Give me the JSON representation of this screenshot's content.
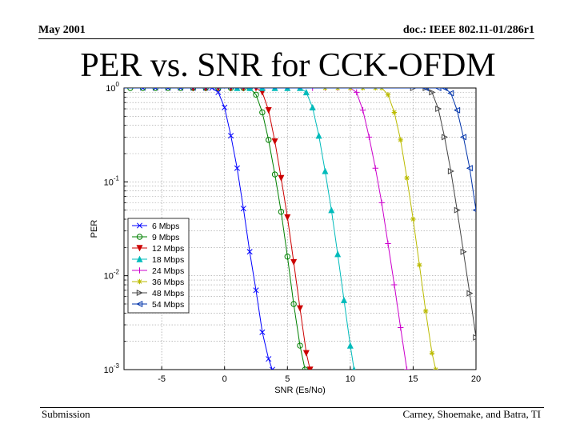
{
  "header": {
    "left": "May 2001",
    "right": "doc.: IEEE 802.11-01/286r1"
  },
  "slide_title": "PER vs. SNR for CCK-OFDM",
  "footer": {
    "left": "Submission",
    "right": "Carney, Shoemake, and Batra, TI"
  },
  "chart_data": {
    "type": "line",
    "xlabel": "SNR (Es/No)",
    "ylabel": "PER",
    "xlim": [
      -8,
      20
    ],
    "ylim": [
      0.001,
      1
    ],
    "yscale": "log",
    "grid": true,
    "legend_position": "left-middle",
    "x_ticks": [
      -5,
      0,
      5,
      10,
      15,
      20
    ],
    "x_tick_labels": [
      "-5",
      "0",
      "5",
      "10",
      "15",
      "20"
    ],
    "y_ticks": [
      1,
      0.1,
      0.01,
      0.001
    ],
    "y_tick_labels": [
      {
        "base": "10",
        "exp": "0"
      },
      {
        "base": "10",
        "exp": "-1"
      },
      {
        "base": "10",
        "exp": "-2"
      },
      {
        "base": "10",
        "exp": "-3"
      }
    ],
    "series": [
      {
        "name": "6 Mbps",
        "color": "#0000ff",
        "marker": "x",
        "points": [
          [
            -6.5,
            1
          ],
          [
            -5.5,
            1
          ],
          [
            -4.5,
            1
          ],
          [
            -3.5,
            1
          ],
          [
            -2.5,
            1
          ],
          [
            -1.5,
            1
          ],
          [
            -1,
            1
          ],
          [
            -0.5,
            0.9
          ],
          [
            0,
            0.62
          ],
          [
            0.5,
            0.31
          ],
          [
            1,
            0.14
          ],
          [
            1.5,
            0.052
          ],
          [
            2,
            0.018
          ],
          [
            2.5,
            0.007
          ],
          [
            3,
            0.0025
          ],
          [
            3.5,
            0.0013
          ],
          [
            3.8,
            0.001
          ]
        ]
      },
      {
        "name": "9 Mbps",
        "color": "#008000",
        "marker": "o",
        "points": [
          [
            -7.5,
            1
          ],
          [
            -6.5,
            1
          ],
          [
            -5.5,
            1
          ],
          [
            -4.5,
            1
          ],
          [
            -3.5,
            1
          ],
          [
            -2.5,
            1
          ],
          [
            -1.5,
            1
          ],
          [
            -0.5,
            1
          ],
          [
            0.5,
            1
          ],
          [
            1.5,
            1
          ],
          [
            2,
            1
          ],
          [
            2.5,
            0.85
          ],
          [
            3,
            0.55
          ],
          [
            3.5,
            0.28
          ],
          [
            4,
            0.12
          ],
          [
            4.5,
            0.048
          ],
          [
            5,
            0.016
          ],
          [
            5.5,
            0.005
          ],
          [
            6,
            0.0018
          ],
          [
            6.4,
            0.001
          ]
        ]
      },
      {
        "name": "12 Mbps",
        "color": "#cc0000",
        "marker": "v",
        "points": [
          [
            -2.5,
            1
          ],
          [
            -1.5,
            1
          ],
          [
            -0.5,
            1
          ],
          [
            0.5,
            1
          ],
          [
            1.5,
            1
          ],
          [
            2.5,
            1
          ],
          [
            3,
            0.9
          ],
          [
            3.5,
            0.58
          ],
          [
            4,
            0.27
          ],
          [
            4.5,
            0.11
          ],
          [
            5,
            0.042
          ],
          [
            5.5,
            0.014
          ],
          [
            6,
            0.0045
          ],
          [
            6.5,
            0.0015
          ],
          [
            6.8,
            0.001
          ]
        ]
      },
      {
        "name": "18 Mbps",
        "color": "#00bbbb",
        "marker": "^",
        "points": [
          [
            1,
            1
          ],
          [
            2,
            1
          ],
          [
            3,
            1
          ],
          [
            4,
            1
          ],
          [
            5,
            1
          ],
          [
            6,
            1
          ],
          [
            6.5,
            0.9
          ],
          [
            7,
            0.62
          ],
          [
            7.5,
            0.31
          ],
          [
            8,
            0.13
          ],
          [
            8.5,
            0.05
          ],
          [
            9,
            0.017
          ],
          [
            9.5,
            0.0055
          ],
          [
            10,
            0.0018
          ],
          [
            10.3,
            0.001
          ]
        ]
      },
      {
        "name": "24 Mbps",
        "color": "#cc00cc",
        "marker": "+",
        "points": [
          [
            7,
            1
          ],
          [
            8,
            1
          ],
          [
            9,
            1
          ],
          [
            10,
            1
          ],
          [
            10.5,
            0.9
          ],
          [
            11,
            0.58
          ],
          [
            11.5,
            0.3
          ],
          [
            12,
            0.14
          ],
          [
            12.5,
            0.06
          ],
          [
            13,
            0.022
          ],
          [
            13.5,
            0.008
          ],
          [
            14,
            0.0028
          ],
          [
            14.5,
            0.001
          ]
        ]
      },
      {
        "name": "36 Mbps",
        "color": "#bbbb00",
        "marker": "*",
        "points": [
          [
            8,
            1
          ],
          [
            9,
            1
          ],
          [
            10,
            1
          ],
          [
            11,
            1
          ],
          [
            12,
            1
          ],
          [
            12.5,
            1
          ],
          [
            13,
            0.85
          ],
          [
            13.5,
            0.55
          ],
          [
            14,
            0.28
          ],
          [
            14.5,
            0.11
          ],
          [
            15,
            0.04
          ],
          [
            15.5,
            0.013
          ],
          [
            16,
            0.0042
          ],
          [
            16.5,
            0.0015
          ],
          [
            16.8,
            0.001
          ]
        ]
      },
      {
        "name": "48 Mbps",
        "color": "#444444",
        "marker": ">",
        "points": [
          [
            15,
            1
          ],
          [
            16,
            1
          ],
          [
            16.5,
            0.9
          ],
          [
            17,
            0.6
          ],
          [
            17.5,
            0.3
          ],
          [
            18,
            0.13
          ],
          [
            18.5,
            0.05
          ],
          [
            19,
            0.018
          ],
          [
            19.5,
            0.0065
          ],
          [
            20,
            0.0022
          ]
        ]
      },
      {
        "name": "54 Mbps",
        "color": "#0033aa",
        "marker": "<",
        "points": [
          [
            16,
            1
          ],
          [
            17,
            1
          ],
          [
            17.5,
            1
          ],
          [
            18,
            0.88
          ],
          [
            18.5,
            0.58
          ],
          [
            19,
            0.3
          ],
          [
            19.5,
            0.14
          ],
          [
            20,
            0.05
          ]
        ]
      }
    ]
  }
}
